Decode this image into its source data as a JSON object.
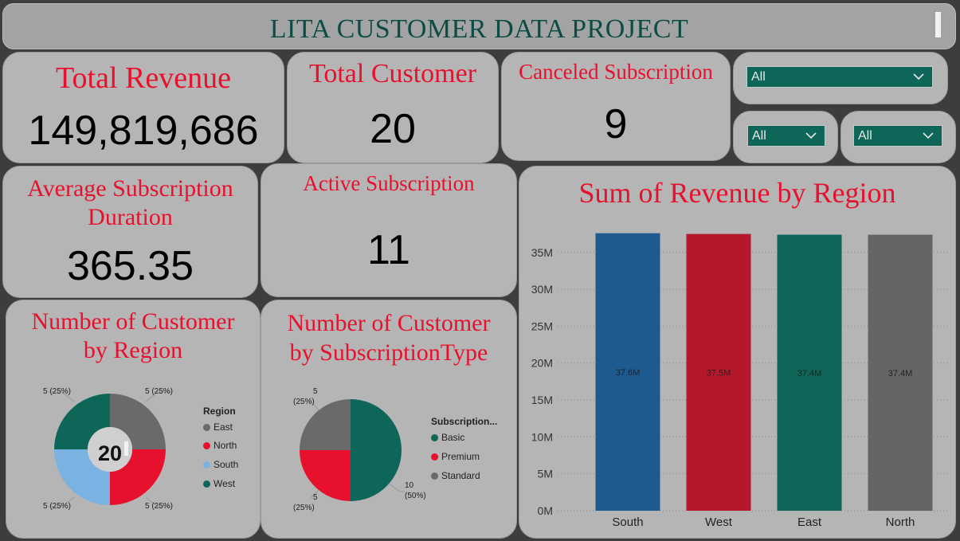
{
  "header": {
    "title": "LITA CUSTOMER DATA PROJECT"
  },
  "kpis": {
    "total_revenue": {
      "label": "Total Revenue",
      "value": "149,819,686"
    },
    "total_customer": {
      "label": "Total Customer",
      "value": "20"
    },
    "canceled_subscription": {
      "label": "Canceled Subscription",
      "value": "9"
    },
    "avg_duration": {
      "label_line1": "Average Subscription",
      "label_line2": "Duration",
      "value": "365.35"
    },
    "active_subscription": {
      "label": "Active Subscription",
      "value": "11"
    }
  },
  "slicers": {
    "top": "All",
    "left": "All",
    "right": "All"
  },
  "donut": {
    "title_line1": "Number of Customer",
    "title_line2": "by Region",
    "center": "20",
    "legend_title": "Region",
    "legend": [
      "East",
      "North",
      "South",
      "West"
    ],
    "labels": {
      "tl": "5 (25%)",
      "tr": "5 (25%)",
      "bl": "5 (25%)",
      "br": "5 (25%)"
    }
  },
  "pie": {
    "title_line1": "Number of Customer",
    "title_line2": "by SubscriptionType",
    "legend_title": "Subscription...",
    "legend": [
      "Basic",
      "Premium",
      "Standard"
    ],
    "labels": {
      "top_n": "5",
      "top_p": "(25%)",
      "left_n": "5",
      "left_p": "(25%)",
      "right_n": "10",
      "right_p": "(50%)"
    }
  },
  "colors": {
    "east": "#6a6a6a",
    "north": "#e8112d",
    "south": "#7ab3e2",
    "west": "#0d6657",
    "basic": "#0d6657",
    "premium": "#e8112d",
    "standard": "#6a6a6a",
    "bar_south": "#1f5a8e",
    "bar_west": "#b5182c",
    "bar_east": "#0d6657",
    "bar_north": "#656565"
  },
  "chart_data": {
    "type": "bar",
    "title": "Sum of Revenue by Region",
    "categories": [
      "South",
      "West",
      "East",
      "North"
    ],
    "values": [
      37.6,
      37.5,
      37.4,
      37.4
    ],
    "data_labels": [
      "37.6M",
      "37.5M",
      "37.4M",
      "37.4M"
    ],
    "y_ticks": [
      "0M",
      "5M",
      "10M",
      "15M",
      "20M",
      "25M",
      "30M",
      "35M"
    ],
    "ylim": [
      0,
      38
    ],
    "grid": true
  }
}
